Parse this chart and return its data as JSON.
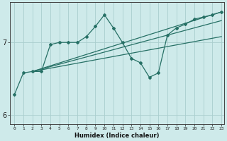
{
  "xlabel": "Humidex (Indice chaleur)",
  "bg_color": "#ceeaea",
  "grid_color": "#aacece",
  "line_color": "#267065",
  "xlim": [
    -0.5,
    23.3
  ],
  "ylim": [
    5.88,
    7.55
  ],
  "yticks": [
    6,
    7
  ],
  "xticks": [
    0,
    1,
    2,
    3,
    4,
    5,
    6,
    7,
    8,
    9,
    10,
    11,
    12,
    13,
    14,
    15,
    16,
    17,
    18,
    19,
    20,
    21,
    22,
    23
  ],
  "main_x": [
    0,
    1,
    2,
    3,
    4,
    5,
    6,
    7,
    8,
    9,
    10,
    11,
    12,
    13,
    14,
    15,
    16,
    17,
    18,
    19,
    20,
    21,
    22,
    23
  ],
  "main_y": [
    6.28,
    6.58,
    6.6,
    6.6,
    6.97,
    7.0,
    7.0,
    7.0,
    7.08,
    7.22,
    7.38,
    7.2,
    7.0,
    6.78,
    6.72,
    6.52,
    6.58,
    7.1,
    7.2,
    7.25,
    7.32,
    7.35,
    7.38,
    7.42
  ],
  "trend1_x": [
    2,
    23
  ],
  "trend1_y": [
    6.6,
    7.08
  ],
  "trend2_x": [
    2,
    23
  ],
  "trend2_y": [
    6.6,
    7.3
  ],
  "trend3_x": [
    2,
    23
  ],
  "trend3_y": [
    6.6,
    7.42
  ]
}
